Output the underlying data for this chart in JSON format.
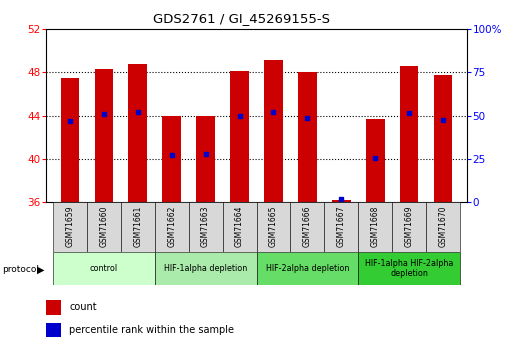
{
  "title": "GDS2761 / GI_45269155-S",
  "samples": [
    "GSM71659",
    "GSM71660",
    "GSM71661",
    "GSM71662",
    "GSM71663",
    "GSM71664",
    "GSM71665",
    "GSM71666",
    "GSM71667",
    "GSM71668",
    "GSM71669",
    "GSM71670"
  ],
  "bar_tops": [
    47.5,
    48.3,
    48.8,
    44.0,
    44.0,
    48.1,
    49.2,
    48.0,
    36.2,
    43.7,
    48.6,
    47.8
  ],
  "bar_bottom": 36.0,
  "blue_markers": [
    43.5,
    44.1,
    44.3,
    40.3,
    40.4,
    44.0,
    44.3,
    43.8,
    36.3,
    40.1,
    44.2,
    43.6
  ],
  "ylim": [
    36,
    52
  ],
  "yticks_left": [
    36,
    40,
    44,
    48,
    52
  ],
  "yticks_right": [
    0,
    25,
    50,
    75,
    100
  ],
  "yticks_right_vals": [
    36,
    40,
    44,
    48,
    52
  ],
  "bar_color": "#cc0000",
  "blue_color": "#0000cc",
  "protocol_groups": [
    {
      "label": "control",
      "start": 0,
      "end": 2,
      "color": "#ccffcc"
    },
    {
      "label": "HIF-1alpha depletion",
      "start": 3,
      "end": 5,
      "color": "#aaeaaa"
    },
    {
      "label": "HIF-2alpha depletion",
      "start": 6,
      "end": 8,
      "color": "#66dd66"
    },
    {
      "label": "HIF-1alpha HIF-2alpha\ndepletion",
      "start": 9,
      "end": 11,
      "color": "#33cc33"
    }
  ],
  "legend_count_color": "#cc0000",
  "legend_pct_color": "#0000cc",
  "bar_width": 0.55,
  "grid_yticks": [
    40,
    44,
    48
  ]
}
